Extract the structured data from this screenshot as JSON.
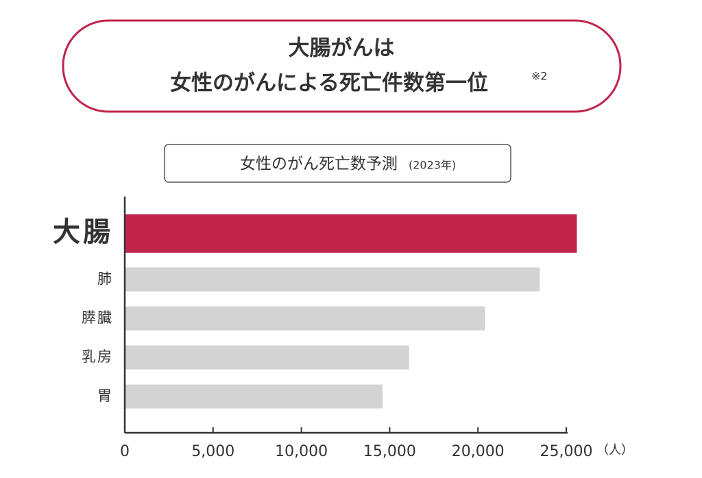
{
  "chart_data": {
    "type": "bar",
    "orientation": "horizontal",
    "title": [
      "大腸がんは",
      "女性のがんによる死亡件数第一位"
    ],
    "title_note": "※2",
    "subtitle": "女性のがん死亡数予測",
    "subtitle_note": "(2023年)",
    "x_unit": "（人）",
    "categories": [
      "大腸",
      "肺",
      "膵臓",
      "乳房",
      "胃"
    ],
    "values": [
      25600,
      23500,
      20400,
      16100,
      14600
    ],
    "colors": [
      "#c0244a",
      "#d3d3d4",
      "#d3d3d4",
      "#d3d3d4",
      "#d3d3d4"
    ],
    "xlim": [
      0,
      25000
    ],
    "xticks": [
      0,
      {
        "value": 5000,
        "label": "5,000"
      },
      {
        "value": 10000,
        "label": "10,000"
      },
      {
        "value": 15000,
        "label": "15,000"
      },
      {
        "value": 20000,
        "label": "20,000"
      },
      {
        "value": 25000,
        "label": "25,000"
      }
    ]
  }
}
